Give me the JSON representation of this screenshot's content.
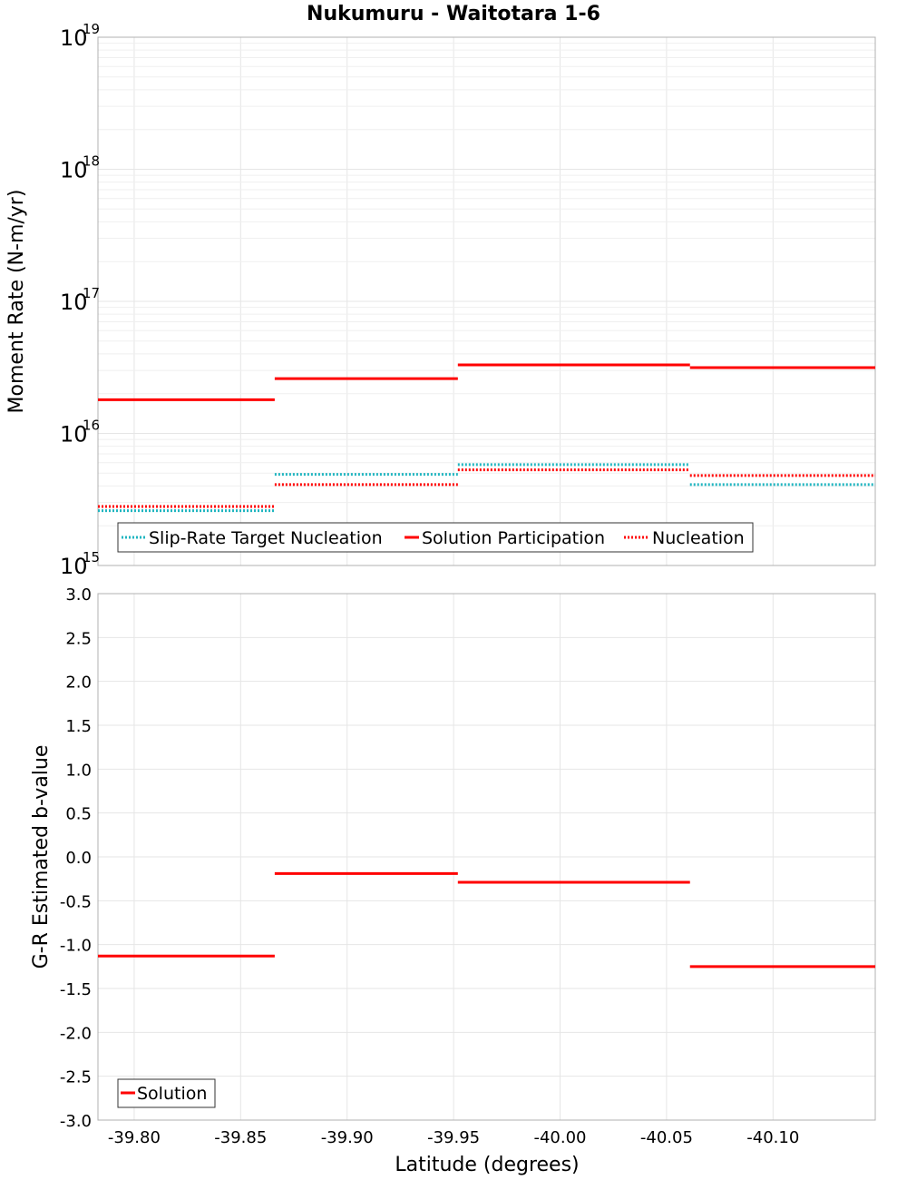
{
  "chart_data": [
    {
      "type": "line",
      "panel": "top",
      "title": "Nukumuru - Waitotara 1-6",
      "xlabel": "Latitude (degrees)",
      "ylabel": "Moment Rate (N-m/yr)",
      "yscale": "log",
      "ylim": [
        1000000000000000.0,
        1e+19
      ],
      "y_ticks": [
        {
          "base": "10",
          "exp": "15",
          "value": 1000000000000000.0
        },
        {
          "base": "10",
          "exp": "16",
          "value": 1e+16
        },
        {
          "base": "10",
          "exp": "17",
          "value": 1e+17
        },
        {
          "base": "10",
          "exp": "18",
          "value": 1e+18
        },
        {
          "base": "10",
          "exp": "19",
          "value": 1e+19
        }
      ],
      "xlim": [
        -39.783,
        -40.148
      ],
      "x_ticks": [
        "-39.80",
        "-39.85",
        "-39.90",
        "-39.95",
        "-40.00",
        "-40.05",
        "-40.10"
      ],
      "x_tick_values": [
        -39.8,
        -39.85,
        -39.9,
        -39.95,
        -40.0,
        -40.05,
        -40.1
      ],
      "legend_position": "bottom-left",
      "series": [
        {
          "name": "Slip-Rate Target Nucleation",
          "color": "#1fb5c0",
          "style": "dotted",
          "segments": [
            {
              "x0": -39.783,
              "x1": -39.866,
              "y": 2600000000000000.0
            },
            {
              "x0": -39.866,
              "x1": -39.952,
              "y": 4900000000000000.0
            },
            {
              "x0": -39.952,
              "x1": -40.061,
              "y": 5800000000000000.0
            },
            {
              "x0": -40.061,
              "x1": -40.148,
              "y": 4100000000000000.0
            }
          ]
        },
        {
          "name": "Solution Participation",
          "color": "#ff0000",
          "style": "solid",
          "segments": [
            {
              "x0": -39.783,
              "x1": -39.866,
              "y": 1.8e+16
            },
            {
              "x0": -39.866,
              "x1": -39.952,
              "y": 2.6e+16
            },
            {
              "x0": -39.952,
              "x1": -40.061,
              "y": 3.3e+16
            },
            {
              "x0": -40.061,
              "x1": -40.148,
              "y": 3.15e+16
            }
          ]
        },
        {
          "name": "Nucleation",
          "color": "#ff0000",
          "style": "dotted",
          "segments": [
            {
              "x0": -39.783,
              "x1": -39.866,
              "y": 2800000000000000.0
            },
            {
              "x0": -39.866,
              "x1": -39.952,
              "y": 4100000000000000.0
            },
            {
              "x0": -39.952,
              "x1": -40.061,
              "y": 5300000000000000.0
            },
            {
              "x0": -40.061,
              "x1": -40.148,
              "y": 4800000000000000.0
            }
          ]
        }
      ]
    },
    {
      "type": "line",
      "panel": "bottom",
      "xlabel": "Latitude (degrees)",
      "ylabel": "G-R Estimated b-value",
      "ylim": [
        -3.0,
        3.0
      ],
      "y_ticks": [
        "-3.0",
        "-2.5",
        "-2.0",
        "-1.5",
        "-1.0",
        "-0.5",
        "0.0",
        "0.5",
        "1.0",
        "1.5",
        "2.0",
        "2.5",
        "3.0"
      ],
      "y_tick_values": [
        -3.0,
        -2.5,
        -2.0,
        -1.5,
        -1.0,
        -0.5,
        0.0,
        0.5,
        1.0,
        1.5,
        2.0,
        2.5,
        3.0
      ],
      "xlim": [
        -39.783,
        -40.148
      ],
      "x_ticks": [
        "-39.80",
        "-39.85",
        "-39.90",
        "-39.95",
        "-40.00",
        "-40.05",
        "-40.10"
      ],
      "x_tick_values": [
        -39.8,
        -39.85,
        -39.9,
        -39.95,
        -40.0,
        -40.05,
        -40.1
      ],
      "legend_position": "bottom-left",
      "series": [
        {
          "name": "Solution",
          "color": "#ff0000",
          "style": "solid",
          "segments": [
            {
              "x0": -39.783,
              "x1": -39.866,
              "y": -1.13
            },
            {
              "x0": -39.866,
              "x1": -39.952,
              "y": -0.19
            },
            {
              "x0": -39.952,
              "x1": -40.061,
              "y": -0.29
            },
            {
              "x0": -40.061,
              "x1": -40.148,
              "y": -1.25
            }
          ]
        }
      ]
    }
  ]
}
